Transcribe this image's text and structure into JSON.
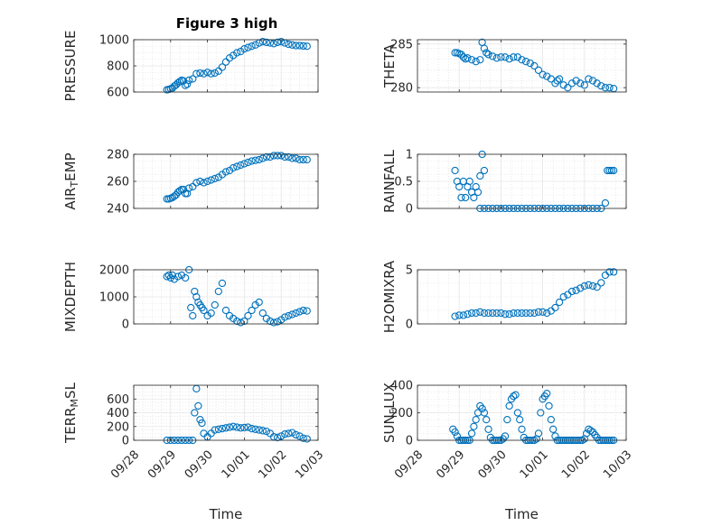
{
  "figure": {
    "title": "Figure 3 high",
    "marker_color": "#0072BD",
    "axis_color": "#262626",
    "grid_color": "#dcdcdc"
  },
  "chart_data": [
    {
      "type": "scatter",
      "title": "Figure 3 high",
      "ylabel_parts": [
        "PRESSURE"
      ],
      "xlabel": "",
      "xlim": [
        "09/28",
        "10/03"
      ],
      "ylim": [
        600,
        1000
      ],
      "yticks": [
        "600",
        "800",
        "1000"
      ],
      "xticks": [],
      "grid": true,
      "x_days": [
        0.9,
        0.95,
        1.0,
        1.05,
        1.1,
        1.15,
        1.2,
        1.25,
        1.3,
        1.35,
        1.4,
        1.45,
        1.5,
        1.6,
        1.7,
        1.8,
        1.9,
        2.0,
        2.1,
        2.2,
        2.3,
        2.4,
        2.5,
        2.6,
        2.7,
        2.8,
        2.9,
        3.0,
        3.1,
        3.2,
        3.3,
        3.4,
        3.5,
        3.6,
        3.7,
        3.8,
        3.9,
        4.0,
        4.1,
        4.2,
        4.3,
        4.4,
        4.5,
        4.6,
        4.7
      ],
      "y": [
        617,
        620,
        625,
        630,
        645,
        655,
        670,
        680,
        690,
        685,
        650,
        660,
        690,
        700,
        740,
        745,
        740,
        750,
        740,
        745,
        760,
        790,
        830,
        860,
        880,
        900,
        910,
        930,
        940,
        950,
        960,
        975,
        985,
        980,
        975,
        970,
        980,
        985,
        975,
        965,
        960,
        955,
        955,
        952,
        950
      ]
    },
    {
      "type": "scatter",
      "ylabel_parts": [
        "THETA"
      ],
      "xlim": [
        "09/28",
        "10/03"
      ],
      "ylim": [
        279.5,
        285.5
      ],
      "yticks": [
        "280",
        "285"
      ],
      "xticks": [],
      "grid": true,
      "x_days": [
        0.9,
        0.95,
        1.0,
        1.05,
        1.1,
        1.15,
        1.2,
        1.3,
        1.4,
        1.5,
        1.55,
        1.6,
        1.65,
        1.7,
        1.8,
        1.9,
        2.0,
        2.1,
        2.2,
        2.3,
        2.4,
        2.5,
        2.6,
        2.7,
        2.8,
        2.9,
        3.0,
        3.1,
        3.2,
        3.3,
        3.35,
        3.4,
        3.5,
        3.6,
        3.7,
        3.8,
        3.9,
        4.0,
        4.1,
        4.2,
        4.3,
        4.4,
        4.5,
        4.6,
        4.7
      ],
      "y": [
        284.0,
        284.0,
        283.9,
        283.8,
        283.5,
        283.3,
        283.4,
        283.2,
        283.0,
        283.2,
        285.2,
        284.5,
        284.0,
        283.8,
        283.6,
        283.4,
        283.5,
        283.5,
        283.3,
        283.5,
        283.5,
        283.2,
        283.0,
        282.8,
        282.5,
        282.0,
        281.5,
        281.3,
        281.0,
        280.5,
        280.8,
        281.0,
        280.3,
        280.0,
        280.5,
        280.8,
        280.5,
        280.3,
        281.0,
        280.8,
        280.5,
        280.2,
        280.0,
        280.0,
        279.9
      ]
    },
    {
      "type": "scatter",
      "ylabel_parts": [
        "AIR",
        "T",
        "EMP"
      ],
      "xlim": [
        "09/28",
        "10/03"
      ],
      "ylim": [
        240,
        280
      ],
      "yticks": [
        "240",
        "260",
        "280"
      ],
      "xticks": [],
      "grid": true,
      "x_days": [
        0.9,
        0.95,
        1.0,
        1.05,
        1.1,
        1.15,
        1.2,
        1.25,
        1.3,
        1.35,
        1.4,
        1.45,
        1.5,
        1.6,
        1.7,
        1.8,
        1.9,
        2.0,
        2.1,
        2.2,
        2.3,
        2.4,
        2.5,
        2.6,
        2.7,
        2.8,
        2.9,
        3.0,
        3.1,
        3.2,
        3.3,
        3.4,
        3.5,
        3.6,
        3.7,
        3.8,
        3.9,
        4.0,
        4.1,
        4.2,
        4.3,
        4.4,
        4.5,
        4.6,
        4.7
      ],
      "y": [
        247,
        247,
        247.5,
        248,
        249,
        250,
        252,
        253,
        254,
        254,
        251,
        251,
        255,
        256,
        259,
        260,
        259,
        260,
        261,
        262,
        263,
        265,
        267,
        268,
        270,
        271,
        272,
        273,
        274,
        275,
        275.5,
        276,
        277,
        278,
        278,
        279,
        279,
        279,
        278,
        278,
        277,
        277,
        276,
        276,
        276
      ]
    },
    {
      "type": "scatter",
      "ylabel_parts": [
        "RAINFALL"
      ],
      "xlim": [
        "09/28",
        "10/03"
      ],
      "ylim": [
        0,
        1
      ],
      "yticks": [
        "0",
        "0.5",
        "1"
      ],
      "xticks": [],
      "grid": true,
      "x_days": [
        0.9,
        0.95,
        1.0,
        1.05,
        1.1,
        1.15,
        1.2,
        1.25,
        1.3,
        1.35,
        1.4,
        1.45,
        1.5,
        1.55,
        1.6,
        1.5,
        1.6,
        1.7,
        1.8,
        1.9,
        2.0,
        2.1,
        2.2,
        2.3,
        2.4,
        2.5,
        2.6,
        2.7,
        2.8,
        2.9,
        3.0,
        3.1,
        3.2,
        3.3,
        3.4,
        3.5,
        3.6,
        3.7,
        3.8,
        3.9,
        4.0,
        4.1,
        4.2,
        4.3,
        4.4,
        4.5,
        4.55,
        4.6,
        4.65,
        4.7
      ],
      "y": [
        0.7,
        0.5,
        0.4,
        0.2,
        0.5,
        0.2,
        0.4,
        0.5,
        0.3,
        0.2,
        0.4,
        0.3,
        0.6,
        1.0,
        0.7,
        0,
        0,
        0,
        0,
        0,
        0,
        0,
        0,
        0,
        0,
        0,
        0,
        0,
        0,
        0,
        0,
        0,
        0,
        0,
        0,
        0,
        0,
        0,
        0,
        0,
        0,
        0,
        0,
        0,
        0,
        0.1,
        0.7,
        0.7,
        0.7,
        0.7
      ]
    },
    {
      "type": "scatter",
      "ylabel_parts": [
        "MIXDEPTH"
      ],
      "xlim": [
        "09/28",
        "10/03"
      ],
      "ylim": [
        0,
        2000
      ],
      "yticks": [
        "0",
        "1000",
        "2000"
      ],
      "xticks": [],
      "grid": true,
      "x_days": [
        0.9,
        0.95,
        1.0,
        1.05,
        1.1,
        1.2,
        1.3,
        1.4,
        1.5,
        1.55,
        1.6,
        1.65,
        1.7,
        1.75,
        1.8,
        1.85,
        1.9,
        2.0,
        2.1,
        2.2,
        2.3,
        2.4,
        2.5,
        2.6,
        2.7,
        2.8,
        2.9,
        3.0,
        3.1,
        3.2,
        3.3,
        3.4,
        3.5,
        3.6,
        3.7,
        3.8,
        3.9,
        4.0,
        4.1,
        4.2,
        4.3,
        4.4,
        4.5,
        4.6,
        4.7
      ],
      "y": [
        1750,
        1800,
        1700,
        1800,
        1650,
        1750,
        1800,
        1700,
        2000,
        600,
        300,
        1200,
        1000,
        800,
        700,
        600,
        500,
        300,
        400,
        700,
        1200,
        1500,
        500,
        300,
        200,
        100,
        50,
        100,
        300,
        500,
        700,
        800,
        400,
        200,
        100,
        50,
        80,
        150,
        250,
        300,
        350,
        400,
        450,
        500,
        480
      ]
    },
    {
      "type": "scatter",
      "ylabel_parts": [
        "H2OMIXRA"
      ],
      "xlim": [
        "09/28",
        "10/03"
      ],
      "ylim": [
        0,
        5
      ],
      "yticks": [
        "0",
        "5"
      ],
      "xticks": [],
      "grid": true,
      "x_days": [
        0.9,
        1.0,
        1.1,
        1.2,
        1.3,
        1.4,
        1.5,
        1.6,
        1.7,
        1.8,
        1.9,
        2.0,
        2.1,
        2.2,
        2.3,
        2.4,
        2.5,
        2.6,
        2.7,
        2.8,
        2.9,
        3.0,
        3.1,
        3.2,
        3.3,
        3.4,
        3.5,
        3.6,
        3.7,
        3.8,
        3.9,
        4.0,
        4.1,
        4.2,
        4.3,
        4.4,
        4.5,
        4.6,
        4.7
      ],
      "y": [
        0.7,
        0.8,
        0.8,
        0.9,
        1.0,
        1.0,
        1.1,
        1.0,
        1.0,
        1.0,
        1.0,
        1.0,
        0.9,
        0.9,
        1.0,
        1.0,
        1.0,
        1.0,
        1.0,
        1.0,
        1.1,
        1.1,
        1.0,
        1.2,
        1.5,
        2.0,
        2.5,
        2.7,
        3.0,
        3.1,
        3.3,
        3.5,
        3.6,
        3.5,
        3.4,
        3.8,
        4.5,
        4.8,
        4.8
      ]
    },
    {
      "type": "scatter",
      "ylabel_parts": [
        "TERR",
        "M",
        "SL"
      ],
      "xlabel": "Time",
      "xlim": [
        "09/28",
        "10/03"
      ],
      "ylim": [
        0,
        800
      ],
      "yticks": [
        "0",
        "200",
        "400",
        "600"
      ],
      "xticks": [
        "09/28",
        "09/29",
        "09/30",
        "10/01",
        "10/02",
        "10/03"
      ],
      "grid": true,
      "x_days": [
        0.9,
        1.0,
        1.1,
        1.2,
        1.3,
        1.4,
        1.5,
        1.6,
        1.65,
        1.7,
        1.75,
        1.8,
        1.85,
        1.9,
        2.0,
        2.1,
        2.2,
        2.3,
        2.4,
        2.5,
        2.6,
        2.7,
        2.8,
        2.9,
        3.0,
        3.1,
        3.2,
        3.3,
        3.4,
        3.5,
        3.6,
        3.7,
        3.8,
        3.9,
        4.0,
        4.1,
        4.2,
        4.3,
        4.4,
        4.5,
        4.6,
        4.7
      ],
      "y": [
        0,
        0,
        0,
        0,
        0,
        0,
        0,
        0,
        400,
        750,
        500,
        300,
        250,
        100,
        50,
        100,
        150,
        160,
        170,
        180,
        190,
        200,
        190,
        180,
        185,
        190,
        170,
        160,
        150,
        140,
        130,
        100,
        50,
        40,
        60,
        90,
        100,
        110,
        80,
        60,
        30,
        20
      ]
    },
    {
      "type": "scatter",
      "ylabel_parts": [
        "SUN",
        "F",
        "LUX"
      ],
      "xlabel": "Time",
      "xlim": [
        "09/28",
        "10/03"
      ],
      "ylim": [
        0,
        400
      ],
      "yticks": [
        "0",
        "200",
        "400"
      ],
      "xticks": [
        "09/28",
        "09/29",
        "09/30",
        "10/01",
        "10/02",
        "10/03"
      ],
      "grid": true,
      "x_days": [
        0.85,
        0.9,
        0.95,
        1.0,
        1.05,
        1.1,
        1.15,
        1.2,
        1.25,
        1.3,
        1.35,
        1.4,
        1.45,
        1.5,
        1.55,
        1.6,
        1.65,
        1.7,
        1.75,
        1.8,
        1.85,
        1.9,
        1.95,
        2.0,
        2.05,
        2.1,
        2.15,
        2.2,
        2.25,
        2.3,
        2.35,
        2.4,
        2.45,
        2.5,
        2.55,
        2.6,
        2.65,
        2.7,
        2.75,
        2.8,
        2.85,
        2.9,
        2.95,
        3.0,
        3.05,
        3.1,
        3.15,
        3.2,
        3.25,
        3.3,
        3.35,
        3.4,
        3.45,
        3.5,
        3.55,
        3.6,
        3.65,
        3.7,
        3.75,
        3.8,
        3.85,
        3.9,
        3.95,
        4.0,
        4.05,
        4.1,
        4.15,
        4.2,
        4.25,
        4.3,
        4.35,
        4.4,
        4.45,
        4.5,
        4.55,
        4.6,
        4.65,
        4.7
      ],
      "y": [
        80,
        60,
        30,
        0,
        0,
        0,
        0,
        0,
        0,
        50,
        100,
        150,
        200,
        250,
        230,
        200,
        150,
        80,
        20,
        0,
        0,
        0,
        0,
        0,
        10,
        30,
        150,
        250,
        300,
        320,
        330,
        200,
        150,
        80,
        20,
        0,
        0,
        0,
        0,
        0,
        10,
        50,
        200,
        300,
        320,
        340,
        250,
        150,
        80,
        30,
        0,
        0,
        0,
        0,
        0,
        0,
        0,
        0,
        0,
        0,
        0,
        0,
        0,
        10,
        50,
        80,
        70,
        60,
        40,
        20,
        0,
        0,
        0,
        0,
        0,
        0,
        0,
        0
      ]
    }
  ]
}
